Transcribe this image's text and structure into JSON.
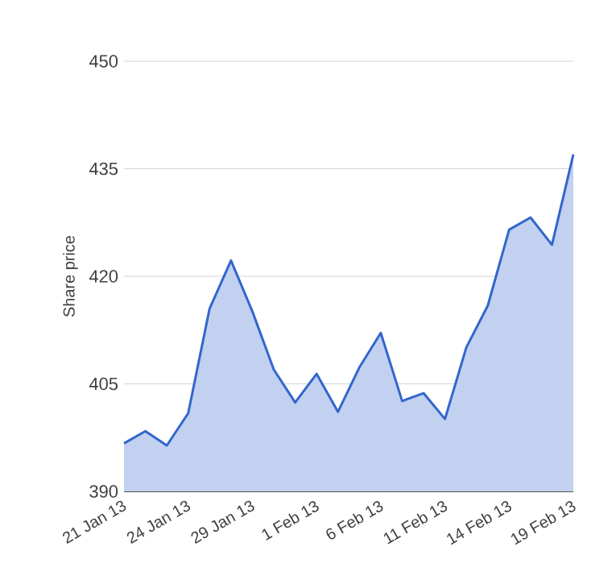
{
  "chart_data": {
    "type": "area",
    "ylabel": "Share price",
    "categories": [
      "21 Jan 13",
      null,
      null,
      "24 Jan 13",
      null,
      null,
      "29 Jan 13",
      null,
      null,
      "1 Feb 13",
      null,
      null,
      "6 Feb 13",
      null,
      null,
      "11 Feb 13",
      null,
      null,
      "14 Feb 13",
      null,
      null,
      "19 Feb 13"
    ],
    "values": [
      396.7,
      398.4,
      396.4,
      400.9,
      415.5,
      422.2,
      415.1,
      407.0,
      402.4,
      406.4,
      401.1,
      407.3,
      412.1,
      402.6,
      403.7,
      400.1,
      410.1,
      415.9,
      426.5,
      428.2,
      424.4,
      437.0
    ],
    "color": "#3366cc",
    "ylim": [
      390,
      450
    ],
    "yticks": [
      390,
      405,
      420,
      435,
      450
    ],
    "grid": "y"
  }
}
